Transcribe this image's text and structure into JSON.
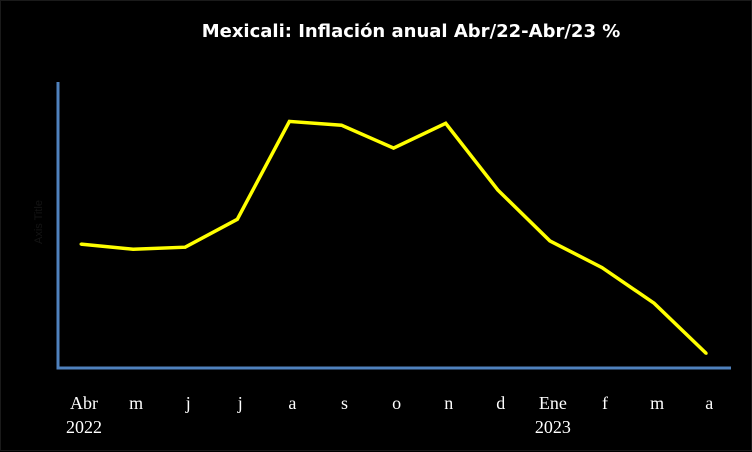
{
  "chart_data": {
    "type": "line",
    "title": "Mexicali: Inflación anual Abr/22-Abr/23 %",
    "ylabel": "Axis Title",
    "xlabel": "",
    "categories": [
      "Abr",
      "m",
      "j",
      "j",
      "a",
      "s",
      "o",
      "n",
      "d",
      "Ene",
      "f",
      "m",
      "a"
    ],
    "year_labels": [
      {
        "index": 0,
        "label": "2022"
      },
      {
        "index": 9,
        "label": "2023"
      }
    ],
    "series": [
      {
        "values": [
          5.05,
          4.97,
          5.0,
          5.44,
          6.98,
          6.92,
          6.56,
          6.95,
          5.9,
          5.1,
          4.68,
          4.12,
          3.33
        ]
      }
    ],
    "ylim": [
      3.1,
      7.6
    ],
    "grid": false,
    "legend": "none",
    "line_color": "#ffff00",
    "axis_color": "#4f81bd",
    "background": "#000000"
  }
}
